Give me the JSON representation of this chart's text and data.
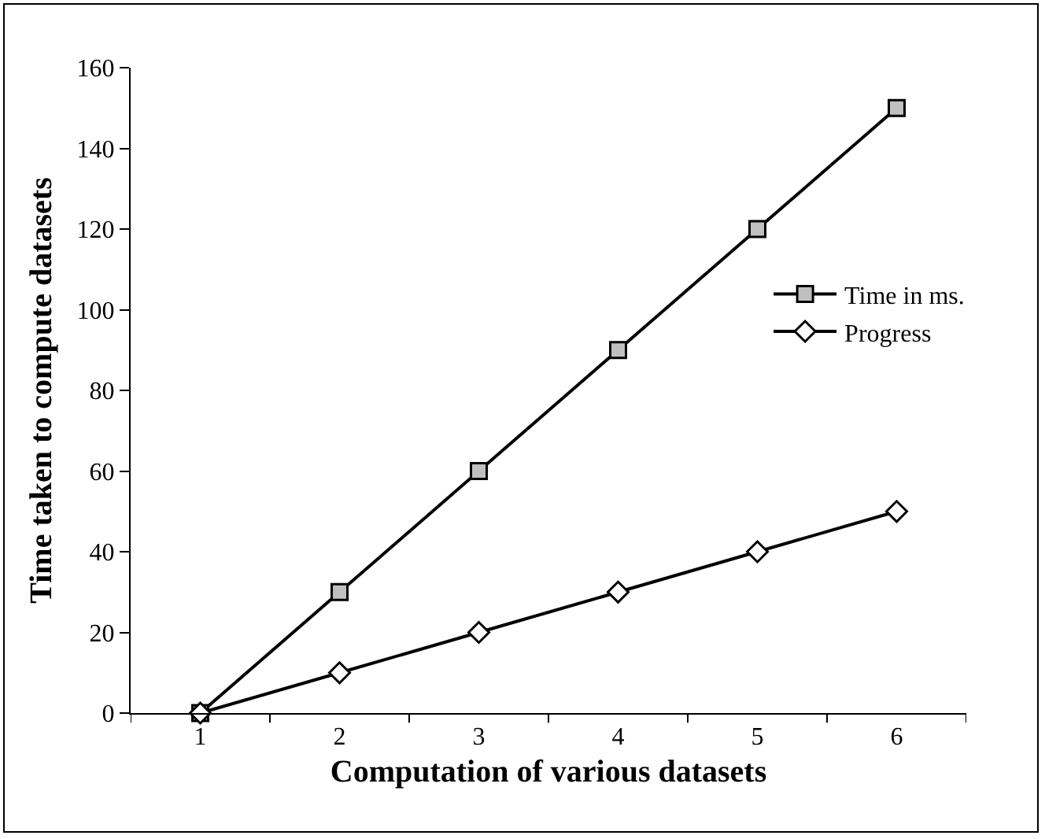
{
  "chart_data": {
    "type": "line",
    "xlabel": "Computation of various datasets",
    "ylabel": "Time taken to compute datasets",
    "categories": [
      "1",
      "2",
      "3",
      "4",
      "5",
      "6"
    ],
    "series": [
      {
        "name": "Time in ms.",
        "color": "#000000",
        "marker": "square",
        "values": [
          0,
          30,
          60,
          90,
          120,
          150
        ]
      },
      {
        "name": "Progress",
        "color": "#000000",
        "marker": "diamond",
        "values": [
          0,
          10,
          20,
          30,
          40,
          50
        ]
      }
    ],
    "ylim": [
      0,
      160
    ],
    "yticks": [
      0,
      20,
      40,
      60,
      80,
      100,
      120,
      140,
      160
    ],
    "grid": false,
    "legend": "right",
    "line_style": "solid"
  }
}
